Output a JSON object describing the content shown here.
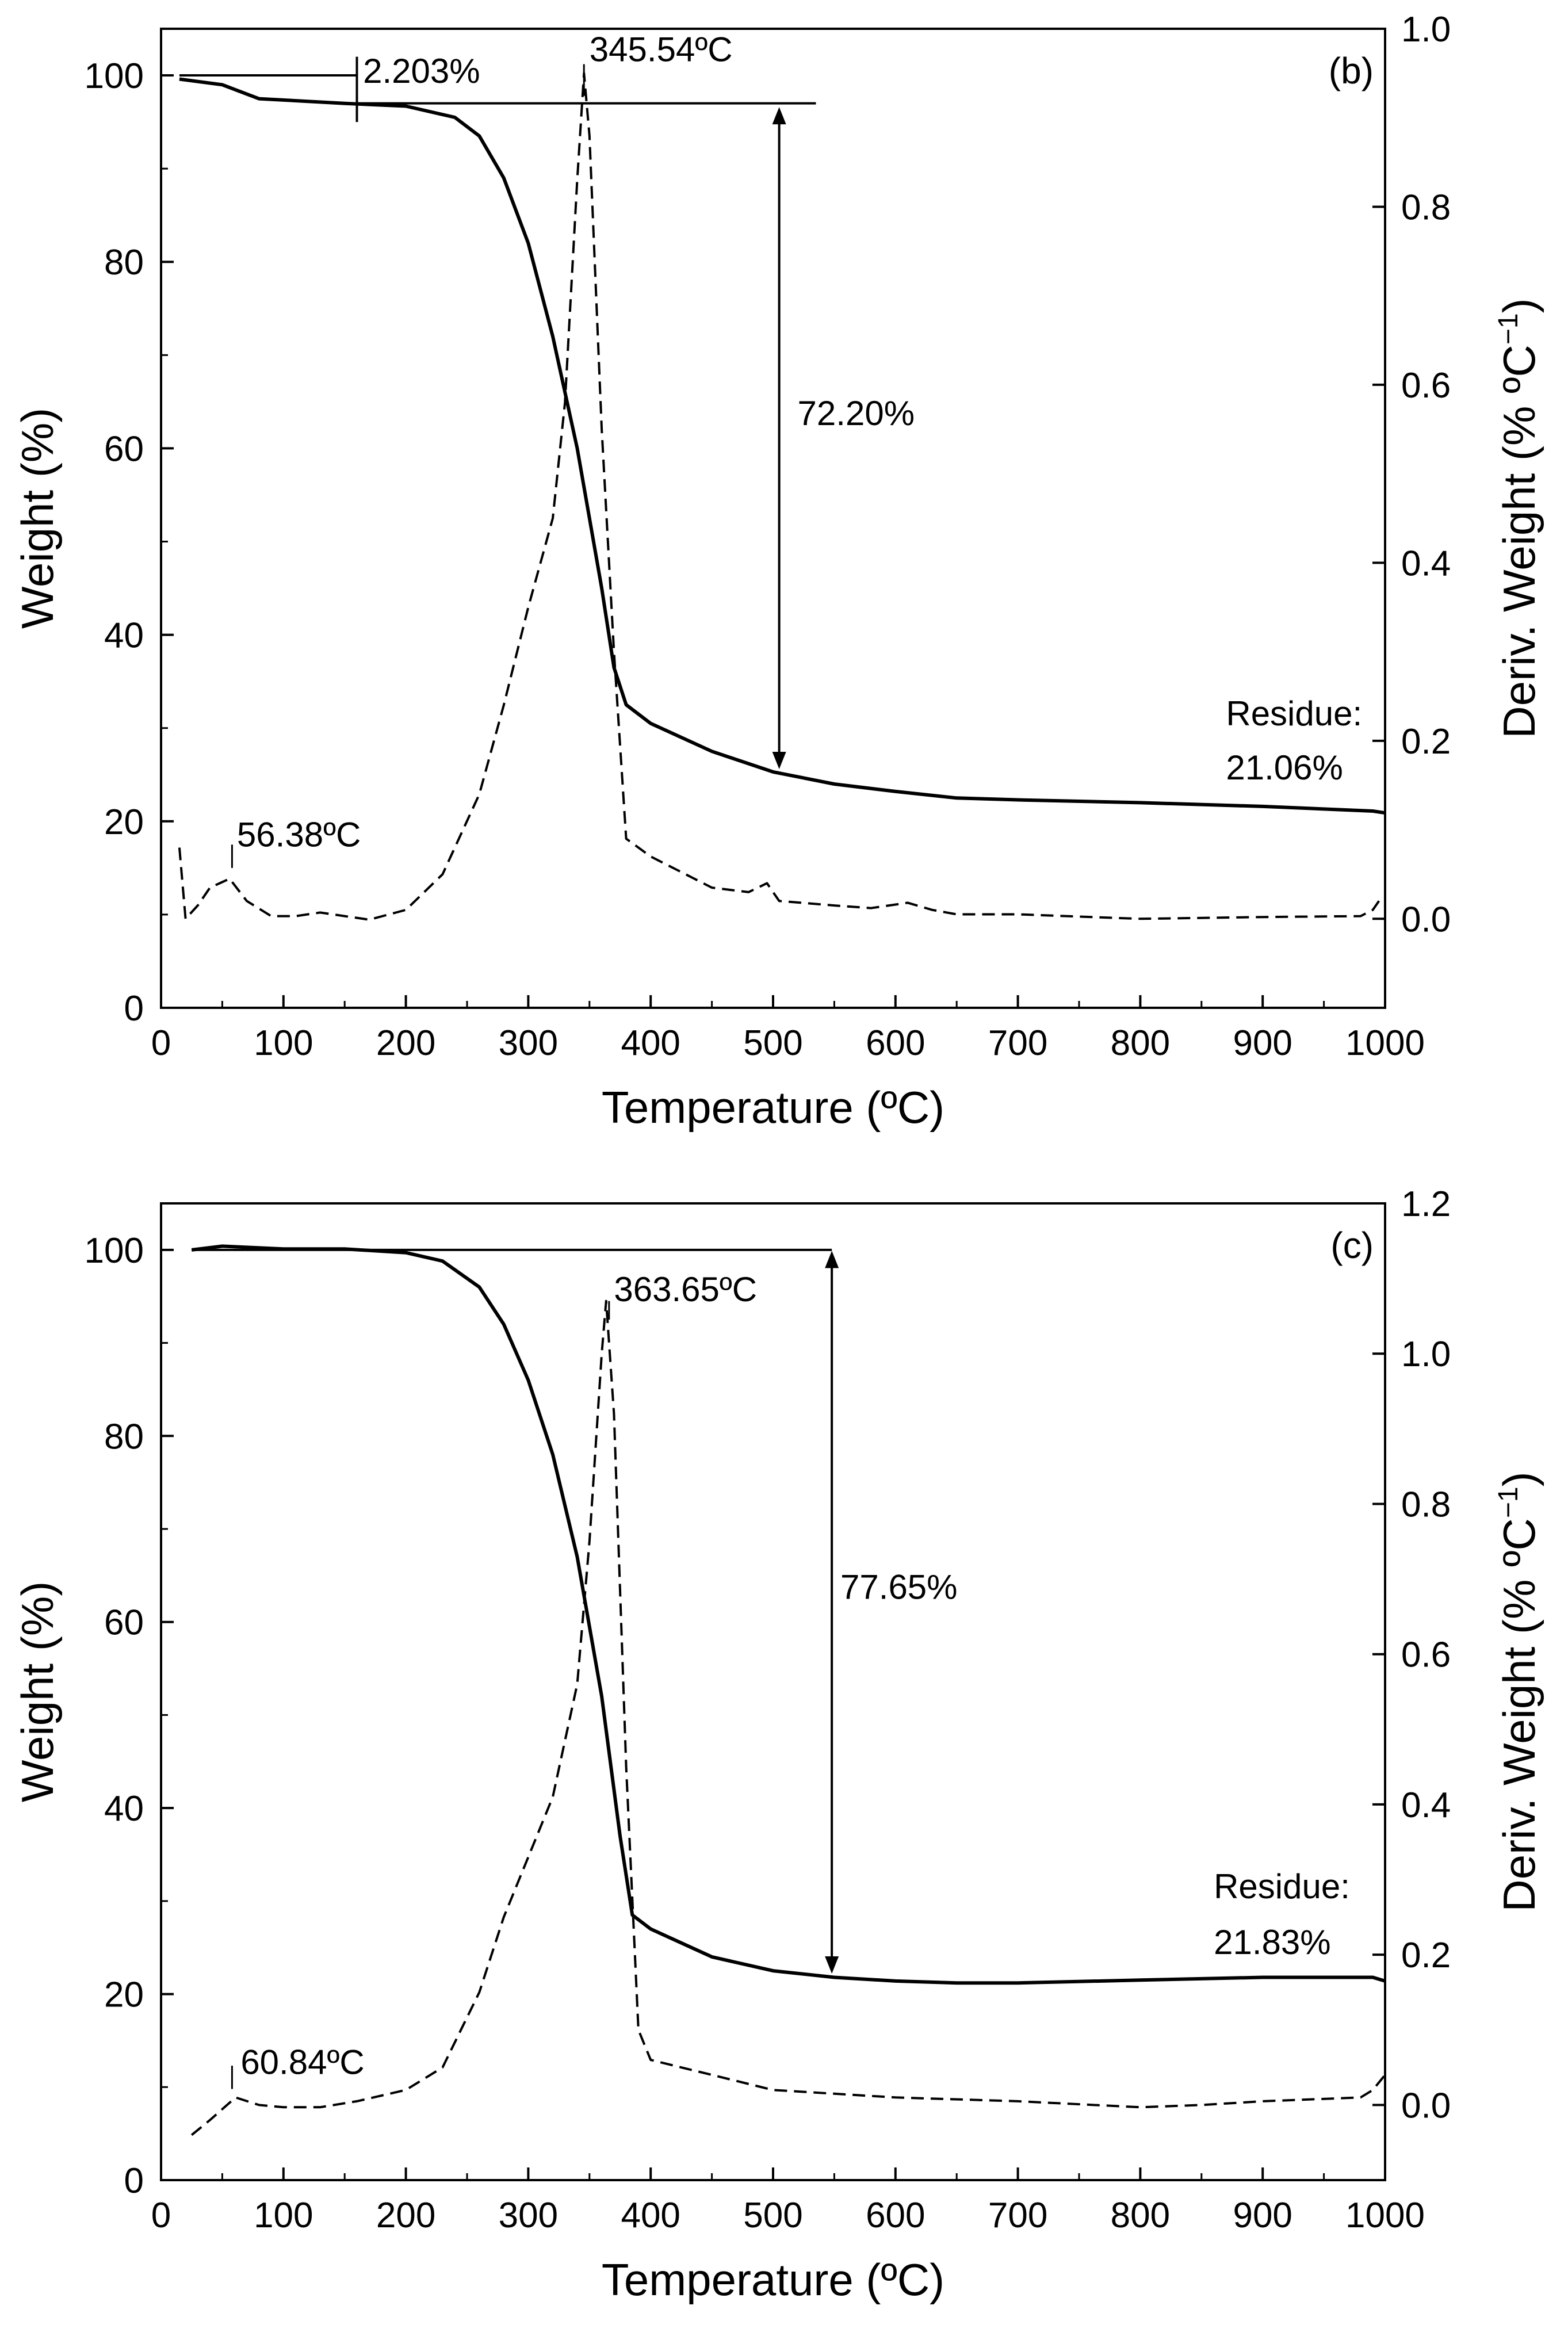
{
  "chart_data": [
    {
      "panel": "(b)",
      "type": "line",
      "xlabel": "Temperature (ºC)",
      "ylabel": "Weight (%)",
      "y2label": "Deriv. Weight (% ºC",
      "y2label_sup": "−1",
      "y2label_end": ")",
      "xlim": [
        0,
        1000
      ],
      "ylim": [
        0,
        105
      ],
      "y2lim": [
        -0.1,
        1.0
      ],
      "x_ticks": [
        "0",
        "100",
        "200",
        "300",
        "400",
        "500",
        "600",
        "700",
        "800",
        "900",
        "1000"
      ],
      "y_ticks": [
        "0",
        "20",
        "40",
        "60",
        "80",
        "100"
      ],
      "y2_ticks": [
        "0.0",
        "0.2",
        "0.4",
        "0.6",
        "0.8",
        "1.0"
      ],
      "x_tick_values": [
        0,
        100,
        200,
        300,
        400,
        500,
        600,
        700,
        800,
        900,
        1000
      ],
      "y_tick_values": [
        0,
        20,
        40,
        60,
        80,
        100
      ],
      "y2_tick_values": [
        0,
        0.2,
        0.4,
        0.6,
        0.8,
        1.0
      ],
      "series": [
        {
          "name": "Weight",
          "axis": "left",
          "style": "solid",
          "x": [
            15,
            50,
            80,
            150,
            200,
            240,
            260,
            280,
            300,
            320,
            340,
            360,
            370,
            380,
            400,
            450,
            500,
            550,
            600,
            650,
            700,
            800,
            900,
            990,
            1000
          ],
          "y": [
            99.6,
            99.0,
            97.5,
            97.0,
            96.7,
            95.5,
            93.5,
            89.0,
            82.0,
            72.0,
            60.0,
            45.0,
            36.5,
            32.5,
            30.5,
            27.5,
            25.3,
            24.0,
            23.2,
            22.5,
            22.3,
            22.0,
            21.6,
            21.1,
            20.9
          ]
        },
        {
          "name": "Deriv. Weight",
          "axis": "right",
          "style": "dashed",
          "x": [
            15,
            20,
            30,
            40,
            56,
            70,
            90,
            110,
            130,
            150,
            170,
            200,
            230,
            260,
            280,
            300,
            310,
            320,
            330,
            340,
            345.54,
            350,
            360,
            370,
            380,
            400,
            450,
            480,
            495,
            505,
            550,
            580,
            610,
            630,
            650,
            700,
            800,
            900,
            980,
            990,
            995
          ],
          "y": [
            0.08,
            0.0,
            0.015,
            0.035,
            0.045,
            0.02,
            0.003,
            0.003,
            0.007,
            0.003,
            -0.001,
            0.01,
            0.05,
            0.14,
            0.24,
            0.35,
            0.4,
            0.45,
            0.58,
            0.83,
            0.95,
            0.88,
            0.55,
            0.3,
            0.09,
            0.07,
            0.035,
            0.03,
            0.04,
            0.02,
            0.015,
            0.012,
            0.018,
            0.01,
            0.005,
            0.005,
            0.0,
            0.002,
            0.003,
            0.01,
            0.02
          ]
        }
      ],
      "annotations": [
        {
          "text": "2.203%",
          "x": 165,
          "y": 99.2
        },
        {
          "text": "345.54ºC",
          "x": 350,
          "y": 101.5
        },
        {
          "text": "72.20%",
          "x": 520,
          "y": 62.5
        },
        {
          "text": "56.38ºC",
          "x": 62,
          "y": 17.3
        },
        {
          "text": "Residue:",
          "x": 870,
          "y": 30.3
        },
        {
          "text": "21.06%",
          "x": 870,
          "y": 24.5
        }
      ]
    },
    {
      "panel": "(c)",
      "type": "line",
      "xlabel": "Temperature (ºC)",
      "ylabel": "Weight (%)",
      "y2label": "Deriv. Weight (% ºC",
      "y2label_sup": "−1",
      "y2label_end": ")",
      "xlim": [
        0,
        1000
      ],
      "ylim": [
        0,
        105
      ],
      "y2lim": [
        -0.1,
        1.2
      ],
      "x_ticks": [
        "0",
        "100",
        "200",
        "300",
        "400",
        "500",
        "600",
        "700",
        "800",
        "900",
        "1000"
      ],
      "y_ticks": [
        "0",
        "20",
        "40",
        "60",
        "80",
        "100"
      ],
      "y2_ticks": [
        "0.0",
        "0.2",
        "0.4",
        "0.6",
        "0.8",
        "1.0",
        "1.2"
      ],
      "x_tick_values": [
        0,
        100,
        200,
        300,
        400,
        500,
        600,
        700,
        800,
        900,
        1000
      ],
      "y_tick_values": [
        0,
        20,
        40,
        60,
        80,
        100
      ],
      "y2_tick_values": [
        0,
        0.2,
        0.4,
        0.6,
        0.8,
        1.0,
        1.2
      ],
      "series": [
        {
          "name": "Weight",
          "axis": "left",
          "style": "solid",
          "x": [
            25,
            50,
            100,
            150,
            200,
            230,
            260,
            280,
            300,
            320,
            340,
            360,
            375,
            385,
            400,
            450,
            500,
            550,
            600,
            650,
            700,
            800,
            900,
            990,
            1000
          ],
          "y": [
            100.0,
            100.4,
            100.1,
            100.1,
            99.7,
            98.8,
            96.0,
            92.0,
            86.0,
            78.0,
            67.0,
            52.0,
            37.0,
            28.5,
            27.0,
            24.0,
            22.5,
            21.8,
            21.4,
            21.2,
            21.2,
            21.5,
            21.8,
            21.8,
            21.4
          ]
        },
        {
          "name": "Deriv. Weight",
          "axis": "right",
          "style": "dashed",
          "x": [
            25,
            40,
            60.84,
            80,
            100,
            130,
            160,
            200,
            230,
            260,
            280,
            300,
            320,
            340,
            350,
            360,
            363.65,
            370,
            380,
            390,
            400,
            450,
            500,
            550,
            600,
            700,
            800,
            850,
            900,
            980,
            990,
            1000
          ],
          "y": [
            -0.04,
            -0.02,
            0.01,
            0.0,
            -0.003,
            -0.003,
            0.005,
            0.02,
            0.05,
            0.15,
            0.25,
            0.33,
            0.41,
            0.56,
            0.75,
            1.0,
            1.07,
            0.92,
            0.45,
            0.1,
            0.06,
            0.04,
            0.02,
            0.015,
            0.01,
            0.005,
            -0.003,
            0.0,
            0.005,
            0.01,
            0.02,
            0.04
          ]
        }
      ],
      "annotations": [
        {
          "text": "363.65ºC",
          "x": 370,
          "y": 94.5
        },
        {
          "text": "77.65%",
          "x": 555,
          "y": 62.5
        },
        {
          "text": "60.84ºC",
          "x": 65,
          "y": 11.4
        },
        {
          "text": "Residue:",
          "x": 860,
          "y": 30.3
        },
        {
          "text": "21.83%",
          "x": 860,
          "y": 24.3
        }
      ]
    }
  ]
}
